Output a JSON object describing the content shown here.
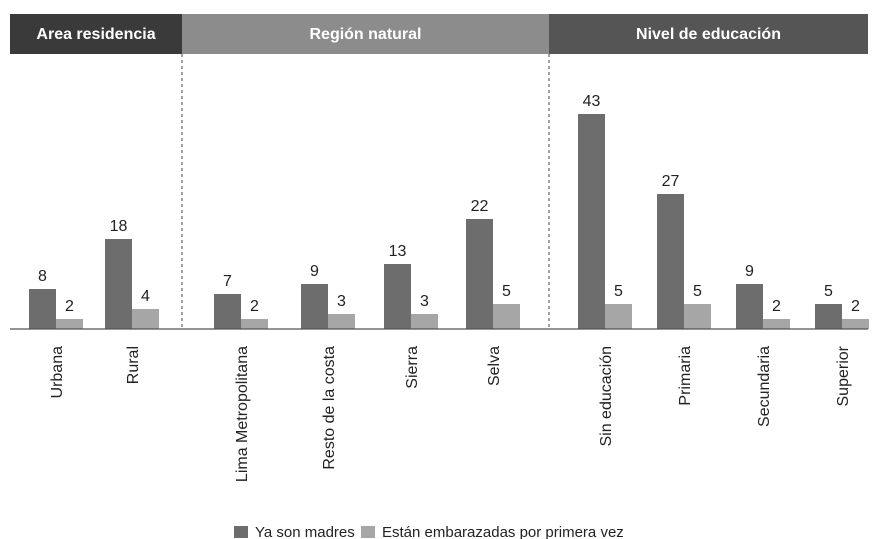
{
  "chart_data": {
    "type": "bar",
    "title": "",
    "xlabel": "",
    "ylabel": "",
    "ylim": [
      0,
      47
    ],
    "grid": false,
    "legend": "bottom-center",
    "groups": [
      {
        "label": "Area residencia",
        "color": "#3a3a3a",
        "categories": [
          "Urbana",
          "Rural"
        ]
      },
      {
        "label": "Región natural",
        "color": "#8c8c8c",
        "categories": [
          "Lima Metropolitana",
          "Resto de la costa",
          "Sierra",
          "Selva"
        ]
      },
      {
        "label": "Nivel de educación",
        "color": "#555555",
        "categories": [
          "Sin educación",
          "Primaria",
          "Secundaria",
          "Superior"
        ]
      }
    ],
    "categories": [
      "Urbana",
      "Rural",
      "Lima Metropolitana",
      "Resto de la costa",
      "Sierra",
      "Selva",
      "Sin educación",
      "Primaria",
      "Secundaria",
      "Superior"
    ],
    "series": [
      {
        "name": "Ya son madres",
        "color": "#6d6d6d",
        "values": [
          8,
          18,
          7,
          9,
          13,
          22,
          43,
          27,
          9,
          5
        ]
      },
      {
        "name": "Están embarazadas por primera vez",
        "color": "#a6a6a6",
        "values": [
          2,
          4,
          2,
          3,
          3,
          5,
          5,
          5,
          2,
          2
        ]
      }
    ]
  }
}
